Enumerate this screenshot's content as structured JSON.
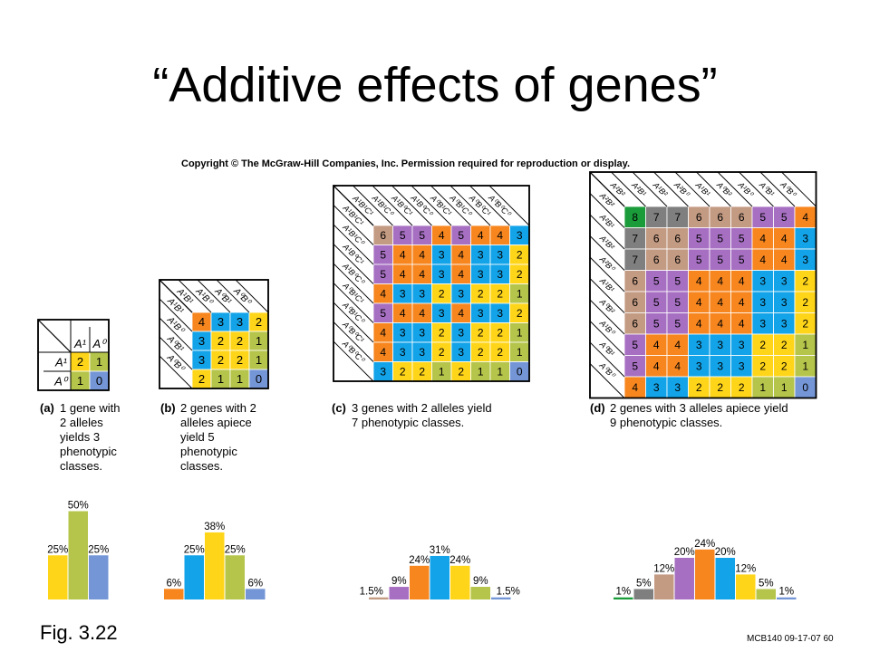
{
  "title": "“Additive effects of genes”",
  "copyright": "Copyright © The McGraw-Hill Companies, Inc. Permission required for reproduction or display.",
  "figure_label": "Fig. 3.22",
  "footer": "MCB140 09-17-07 60",
  "colors": {
    "8": "#1a9c3a",
    "7": "#7f7f7f",
    "6": "#c39a82",
    "5": "#a66fc2",
    "4": "#f7861f",
    "3": "#13a3e8",
    "2": "#ffd51a",
    "1": "#b5c44a",
    "0": "#7496d6",
    "line": "#000000"
  },
  "panels": [
    {
      "id": "a",
      "caption_letter": "(a)",
      "caption_lines": [
        "1 gene with",
        "2 alleles",
        "yields 3",
        "phenotypic",
        "classes."
      ],
      "col_headers": [
        "A¹",
        "A⁰"
      ],
      "row_headers": [
        "A¹",
        "A⁰"
      ],
      "grid": [
        [
          2,
          1
        ],
        [
          1,
          0
        ]
      ]
    },
    {
      "id": "b",
      "caption_letter": "(b)",
      "caption_lines": [
        "2 genes with 2",
        "alleles apiece",
        "yield 5",
        "phenotypic",
        "classes."
      ],
      "col_headers": [
        "A¹B¹",
        "A¹B⁰",
        "A⁰B¹",
        "A⁰B⁰"
      ],
      "row_headers": [
        "A¹B¹",
        "A¹B⁰",
        "A⁰B¹",
        "A⁰B⁰"
      ],
      "grid": [
        [
          4,
          3,
          3,
          2
        ],
        [
          3,
          2,
          2,
          1
        ],
        [
          3,
          2,
          2,
          1
        ],
        [
          2,
          1,
          1,
          0
        ]
      ]
    },
    {
      "id": "c",
      "caption_letter": "(c)",
      "caption_lines": [
        "3 genes with 2 alleles yield",
        "7 phenotypic classes."
      ],
      "col_headers": [
        "A¹B¹C¹",
        "A¹B¹C⁰",
        "A¹B⁰C¹",
        "A¹B⁰C⁰",
        "A⁰B¹C¹",
        "A⁰B¹C⁰",
        "A⁰B⁰C¹",
        "A⁰B⁰C⁰"
      ],
      "row_headers": [
        "A¹B¹C¹",
        "A¹B¹C⁰",
        "A¹B⁰C¹",
        "A¹B⁰C⁰",
        "A⁰B¹C¹",
        "A⁰B¹C⁰",
        "A⁰B⁰C¹",
        "A⁰B⁰C⁰"
      ],
      "grid": [
        [
          6,
          5,
          5,
          4,
          5,
          4,
          4,
          3
        ],
        [
          5,
          4,
          4,
          3,
          4,
          3,
          3,
          2
        ],
        [
          5,
          4,
          4,
          3,
          4,
          3,
          3,
          2
        ],
        [
          4,
          3,
          3,
          2,
          3,
          2,
          2,
          1
        ],
        [
          5,
          4,
          4,
          3,
          4,
          3,
          3,
          2
        ],
        [
          4,
          3,
          3,
          2,
          3,
          2,
          2,
          1
        ],
        [
          4,
          3,
          3,
          2,
          3,
          2,
          2,
          1
        ],
        [
          3,
          2,
          2,
          1,
          2,
          1,
          1,
          0
        ]
      ]
    },
    {
      "id": "d",
      "caption_letter": "(d)",
      "caption_lines": [
        "2 genes with 3 alleles apiece yield",
        "9 phenotypic classes."
      ],
      "col_headers": [
        "A²B²",
        "A²B¹",
        "A¹B²",
        "A²B⁰",
        "A¹B¹",
        "A⁰B²",
        "A¹B⁰",
        "A⁰B¹",
        "A⁰B⁰"
      ],
      "row_headers": [
        "A²B²",
        "A²B¹",
        "A¹B²",
        "A²B⁰",
        "A¹B¹",
        "A⁰B²",
        "A¹B⁰",
        "A⁰B¹",
        "A⁰B⁰"
      ],
      "grid": [
        [
          8,
          7,
          7,
          6,
          6,
          6,
          5,
          5,
          4
        ],
        [
          7,
          6,
          6,
          5,
          5,
          5,
          4,
          4,
          3
        ],
        [
          7,
          6,
          6,
          5,
          5,
          5,
          4,
          4,
          3
        ],
        [
          6,
          5,
          5,
          4,
          4,
          4,
          3,
          3,
          2
        ],
        [
          6,
          5,
          5,
          4,
          4,
          4,
          3,
          3,
          2
        ],
        [
          6,
          5,
          5,
          4,
          4,
          4,
          3,
          3,
          2
        ],
        [
          5,
          4,
          4,
          3,
          3,
          3,
          2,
          2,
          1
        ],
        [
          5,
          4,
          4,
          3,
          3,
          3,
          2,
          2,
          1
        ],
        [
          4,
          3,
          3,
          2,
          2,
          2,
          1,
          1,
          0
        ]
      ]
    }
  ],
  "chart_data": [
    {
      "type": "bar",
      "title": "",
      "categories": [
        "2",
        "1",
        "0"
      ],
      "values": [
        25,
        50,
        25
      ],
      "labels": [
        "25%",
        "50%",
        "25%"
      ],
      "colors": [
        "#ffd51a",
        "#b5c44a",
        "#7496d6"
      ]
    },
    {
      "type": "bar",
      "title": "",
      "categories": [
        "4",
        "3",
        "2",
        "1",
        "0"
      ],
      "values": [
        6,
        25,
        38,
        25,
        6
      ],
      "labels": [
        "6%",
        "25%",
        "38%",
        "25%",
        "6%"
      ],
      "colors": [
        "#f7861f",
        "#13a3e8",
        "#ffd51a",
        "#b5c44a",
        "#7496d6"
      ]
    },
    {
      "type": "bar",
      "title": "",
      "categories": [
        "6",
        "5",
        "4",
        "3",
        "2",
        "1",
        "0"
      ],
      "values": [
        1.5,
        9,
        24,
        31,
        24,
        9,
        1.5
      ],
      "labels": [
        "1.5%",
        "9%",
        "24%",
        "31%",
        "24%",
        "9%",
        "1.5%"
      ],
      "colors": [
        "#c39a82",
        "#a66fc2",
        "#f7861f",
        "#13a3e8",
        "#ffd51a",
        "#b5c44a",
        "#7496d6"
      ]
    },
    {
      "type": "bar",
      "title": "",
      "categories": [
        "8",
        "7",
        "6",
        "5",
        "4",
        "3",
        "2",
        "1",
        "0"
      ],
      "values": [
        1,
        5,
        12,
        20,
        24,
        20,
        12,
        5,
        1
      ],
      "labels": [
        "1%",
        "5%",
        "12%",
        "20%",
        "24%",
        "20%",
        "12%",
        "5%",
        "1%"
      ],
      "colors": [
        "#1a9c3a",
        "#7f7f7f",
        "#c39a82",
        "#a66fc2",
        "#f7861f",
        "#13a3e8",
        "#ffd51a",
        "#b5c44a",
        "#7496d6"
      ]
    }
  ]
}
